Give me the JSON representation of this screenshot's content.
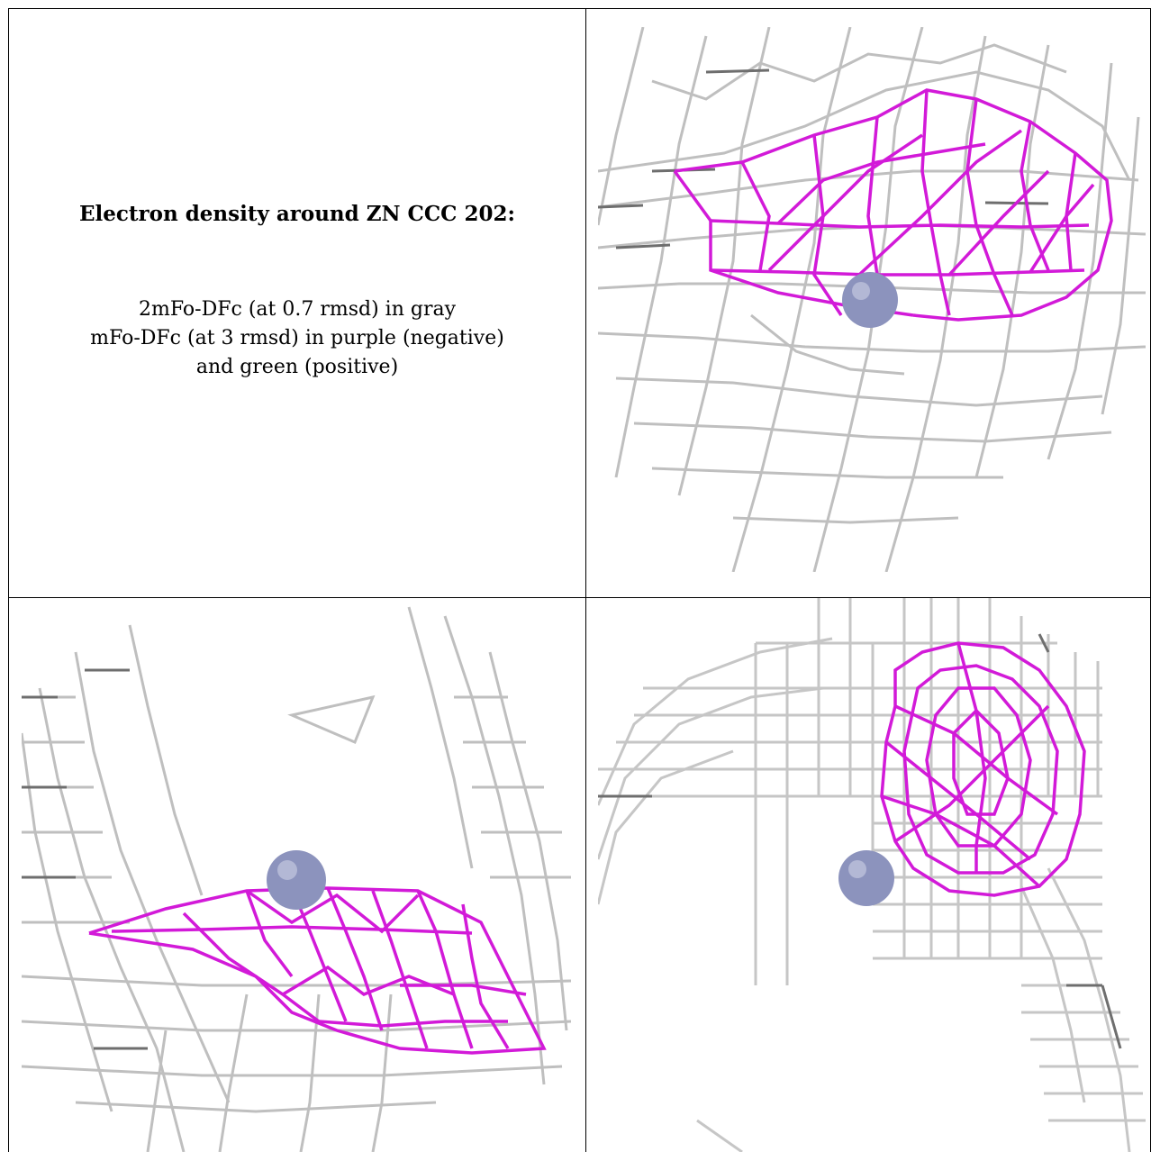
{
  "caption": {
    "title": "Electron density around ZN CCC 202:",
    "line1": "2mFo-DFc (at 0.7 rmsd) in gray",
    "line2": "mFo-DFc (at 3 rmsd) in purple (negative)",
    "line3": "and green (positive)"
  },
  "colors": {
    "map_2fofc": "#bdbdbd",
    "map_fofc_negative": "#d21ad8",
    "map_fofc_positive": "#2db02d",
    "zinc_atom": "#8c93bd"
  },
  "panels": [
    {
      "name": "view-1",
      "atom": "ZN CCC 202"
    },
    {
      "name": "view-2",
      "atom": "ZN CCC 202"
    },
    {
      "name": "view-3",
      "atom": "ZN CCC 202"
    }
  ]
}
